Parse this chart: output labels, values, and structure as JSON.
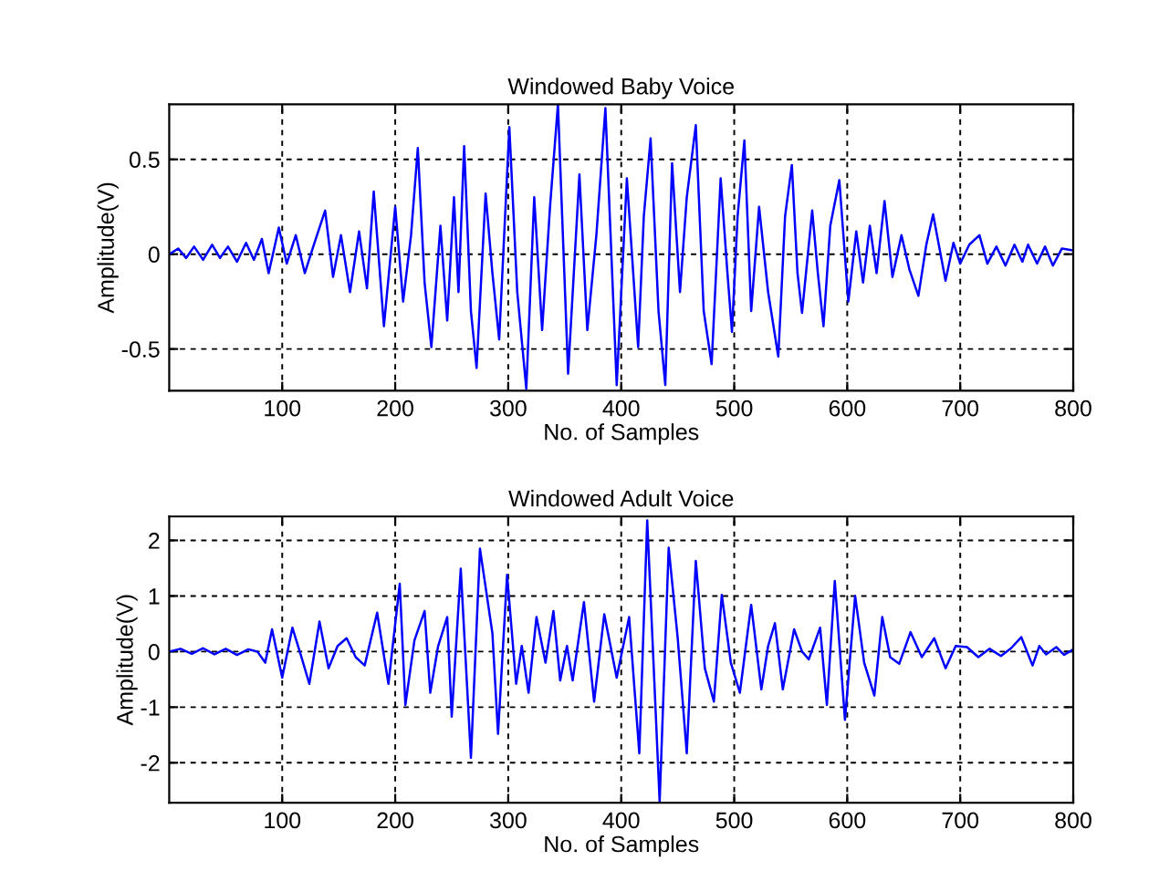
{
  "chart_data": [
    {
      "type": "line",
      "title": "Windowed Baby Voice",
      "xlabel": "No. of Samples",
      "ylabel": "Amplitude(V)",
      "xlim": [
        0,
        800
      ],
      "xticks": [
        100,
        200,
        300,
        400,
        500,
        600,
        700,
        800
      ],
      "ylim": [
        -0.72,
        0.79
      ],
      "yticks": [
        -0.5,
        0,
        0.5
      ],
      "grid": true,
      "legend": false,
      "marker": "none",
      "line_style": "solid",
      "series": [
        {
          "color": "#0000ff",
          "x": [
            0,
            8,
            15,
            22,
            30,
            38,
            45,
            52,
            60,
            68,
            75,
            82,
            88,
            97,
            104,
            112,
            120,
            128,
            138,
            145,
            152,
            160,
            168,
            175,
            181,
            190,
            200,
            207,
            214,
            220,
            226,
            232,
            240,
            246,
            252,
            256,
            261,
            267,
            272,
            280,
            286,
            292,
            301,
            308,
            316,
            323,
            330,
            337,
            344,
            353,
            363,
            370,
            378,
            386,
            396,
            405,
            415,
            420,
            426,
            433,
            439,
            445,
            452,
            458,
            466,
            473,
            480,
            488,
            494,
            498,
            503,
            509,
            515,
            522,
            530,
            539,
            545,
            551,
            556,
            560,
            569,
            574,
            579,
            585,
            593,
            601,
            608,
            614,
            620,
            626,
            633,
            640,
            648,
            655,
            663,
            670,
            676,
            687,
            694,
            700,
            708,
            717,
            724,
            732,
            740,
            748,
            755,
            760,
            768,
            775,
            782,
            790,
            800
          ],
          "values": [
            0.0,
            0.03,
            -0.02,
            0.04,
            -0.03,
            0.05,
            -0.02,
            0.04,
            -0.04,
            0.06,
            -0.03,
            0.08,
            -0.1,
            0.14,
            -0.05,
            0.1,
            -0.1,
            0.05,
            0.23,
            -0.12,
            0.1,
            -0.2,
            0.12,
            -0.18,
            0.33,
            -0.38,
            0.25,
            -0.25,
            0.1,
            0.56,
            -0.15,
            -0.49,
            0.15,
            -0.35,
            0.3,
            -0.2,
            0.57,
            -0.3,
            -0.6,
            0.32,
            -0.1,
            -0.45,
            0.67,
            -0.2,
            -0.71,
            0.3,
            -0.4,
            0.25,
            0.79,
            -0.63,
            0.42,
            -0.4,
            0.1,
            0.77,
            -0.69,
            0.4,
            -0.49,
            0.2,
            0.61,
            -0.3,
            -0.69,
            0.48,
            -0.2,
            0.3,
            0.68,
            -0.3,
            -0.58,
            0.4,
            -0.1,
            -0.41,
            0.2,
            0.6,
            -0.3,
            0.25,
            -0.2,
            -0.54,
            0.2,
            0.47,
            -0.1,
            -0.31,
            0.23,
            -0.1,
            -0.38,
            0.15,
            0.39,
            -0.25,
            0.12,
            -0.15,
            0.15,
            -0.1,
            0.28,
            -0.12,
            0.1,
            -0.08,
            -0.22,
            0.05,
            0.21,
            -0.14,
            0.06,
            -0.05,
            0.05,
            0.1,
            -0.05,
            0.04,
            -0.06,
            0.05,
            -0.04,
            0.05,
            -0.05,
            0.04,
            -0.06,
            0.03,
            0.02
          ]
        }
      ]
    },
    {
      "type": "line",
      "title": "Windowed Adult Voice",
      "xlabel": "No. of Samples",
      "ylabel": "Amplitude(V)",
      "xlim": [
        0,
        800
      ],
      "xticks": [
        100,
        200,
        300,
        400,
        500,
        600,
        700,
        800
      ],
      "ylim": [
        -2.72,
        2.43
      ],
      "yticks": [
        -2,
        -1,
        0,
        1,
        2
      ],
      "grid": true,
      "legend": false,
      "marker": "none",
      "line_style": "solid",
      "series": [
        {
          "color": "#0000ff",
          "x": [
            0,
            10,
            20,
            30,
            40,
            50,
            60,
            70,
            78,
            85,
            91,
            100,
            109,
            117,
            124,
            133,
            141,
            149,
            157,
            165,
            173,
            184,
            194,
            204,
            209,
            217,
            226,
            231,
            238,
            246,
            250,
            258,
            267,
            275,
            286,
            291,
            299,
            307,
            312,
            318,
            325,
            333,
            340,
            346,
            352,
            357,
            367,
            376,
            385,
            396,
            407,
            416,
            423,
            434,
            442,
            450,
            458,
            466,
            474,
            482,
            489,
            497,
            505,
            515,
            524,
            530,
            536,
            543,
            553,
            560,
            566,
            576,
            582,
            589,
            598,
            607,
            615,
            624,
            631,
            638,
            646,
            656,
            666,
            677,
            687,
            696,
            706,
            716,
            726,
            736,
            745,
            754,
            764,
            770,
            776,
            785,
            792,
            800
          ],
          "values": [
            0.0,
            0.05,
            -0.04,
            0.06,
            -0.05,
            0.05,
            -0.06,
            0.04,
            0.0,
            -0.2,
            0.4,
            -0.47,
            0.43,
            -0.1,
            -0.58,
            0.54,
            -0.3,
            0.1,
            0.24,
            -0.1,
            -0.25,
            0.7,
            -0.58,
            1.22,
            -0.96,
            0.2,
            0.73,
            -0.74,
            0.1,
            0.62,
            -1.17,
            1.49,
            -1.91,
            1.85,
            0.33,
            -1.48,
            1.38,
            -0.58,
            0.1,
            -0.74,
            0.62,
            -0.2,
            0.73,
            -0.52,
            0.1,
            -0.52,
            0.89,
            -0.9,
            0.67,
            -0.47,
            0.62,
            -1.83,
            2.36,
            -2.7,
            1.87,
            0.24,
            -1.83,
            1.63,
            -0.3,
            -0.9,
            1.02,
            -0.2,
            -0.74,
            0.84,
            -0.68,
            0.1,
            0.51,
            -0.68,
            0.4,
            0.0,
            -0.14,
            0.43,
            -0.96,
            1.27,
            -1.23,
            1.0,
            -0.2,
            -0.79,
            0.62,
            -0.1,
            -0.22,
            0.35,
            -0.1,
            0.24,
            -0.3,
            0.1,
            0.08,
            -0.1,
            0.05,
            -0.08,
            0.06,
            0.26,
            -0.25,
            0.1,
            -0.05,
            0.08,
            -0.06,
            0.04
          ]
        }
      ]
    }
  ]
}
